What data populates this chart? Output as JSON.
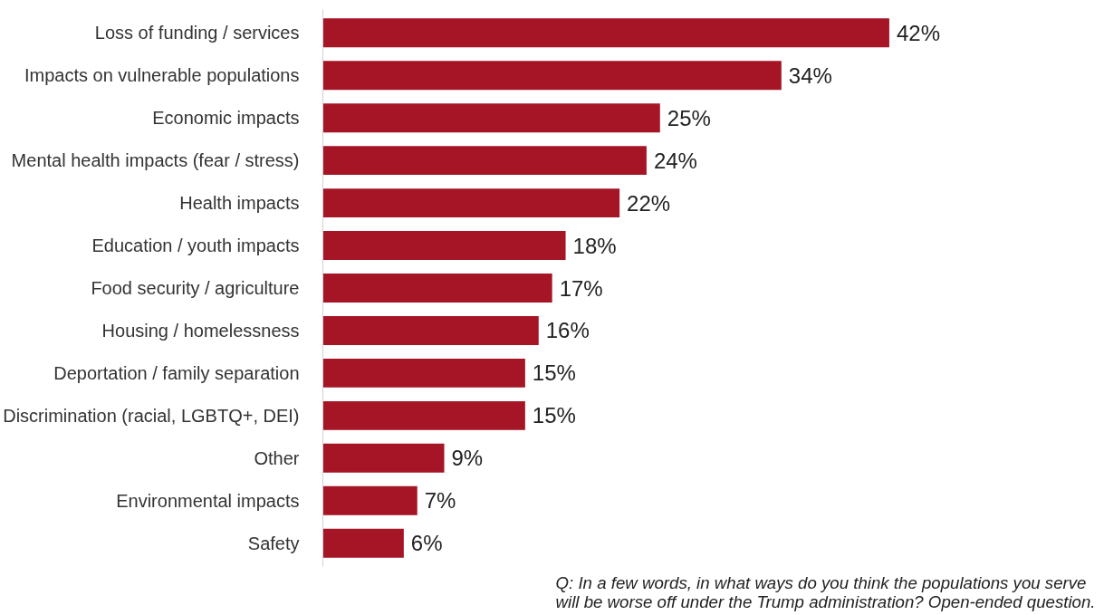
{
  "chart_data": {
    "type": "bar",
    "orientation": "horizontal",
    "categories": [
      "Loss of funding / services",
      "Impacts on vulnerable populations",
      "Economic impacts",
      "Mental health impacts (fear / stress)",
      "Health impacts",
      "Education / youth impacts",
      "Food security / agriculture",
      "Housing / homelessness",
      "Deportation / family separation",
      "Discrimination (racial, LGBTQ+, DEI)",
      "Other",
      "Environmental impacts",
      "Safety"
    ],
    "values": [
      42,
      34,
      25,
      24,
      22,
      18,
      17,
      16,
      15,
      15,
      9,
      7,
      6
    ],
    "value_labels": [
      "42%",
      "34%",
      "25%",
      "24%",
      "22%",
      "18%",
      "17%",
      "16%",
      "15%",
      "15%",
      "9%",
      "7%",
      "6%"
    ],
    "color": "#a51526",
    "grid": false,
    "annotations": [
      "Q: In a few words, in what ways do you think the populations you serve will be worse off under the Trump administration? Open-ended question."
    ]
  }
}
